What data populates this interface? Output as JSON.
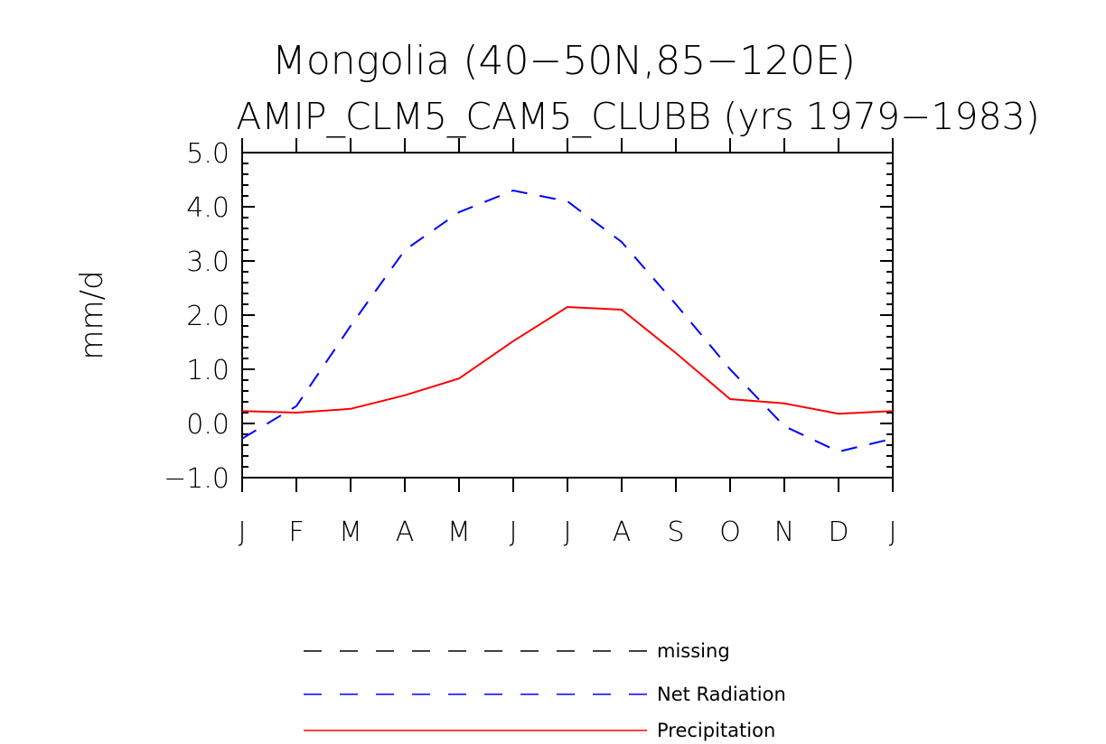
{
  "chart_data": {
    "type": "line",
    "title": "Mongolia (40−50N,85−120E)",
    "subtitle": "AMIP_CLM5_CAM5_CLUBB (yrs 1979−1983)",
    "xlabel": "",
    "ylabel": "mm/d",
    "categories": [
      "J",
      "F",
      "M",
      "A",
      "M",
      "J",
      "J",
      "A",
      "S",
      "O",
      "N",
      "D",
      "J"
    ],
    "ylim": [
      -1.0,
      5.0
    ],
    "yticks": [
      {
        "value": -1.0,
        "label": "−1.0"
      },
      {
        "value": 0.0,
        "label": "0.0"
      },
      {
        "value": 1.0,
        "label": "1.0"
      },
      {
        "value": 2.0,
        "label": "2.0"
      },
      {
        "value": 3.0,
        "label": "3.0"
      },
      {
        "value": 4.0,
        "label": "4.0"
      },
      {
        "value": 5.0,
        "label": "5.0"
      }
    ],
    "series": [
      {
        "name": "Net Radiation",
        "color": "#0000ff",
        "style": "dashed",
        "values": [
          -0.28,
          0.32,
          1.8,
          3.2,
          3.9,
          4.3,
          4.1,
          3.35,
          2.2,
          1.0,
          -0.05,
          -0.52,
          -0.28
        ]
      },
      {
        "name": "Precipitation",
        "color": "#ff0000",
        "style": "solid",
        "values": [
          0.23,
          0.2,
          0.27,
          0.52,
          0.83,
          1.52,
          2.15,
          2.1,
          1.3,
          0.45,
          0.37,
          0.18,
          0.23
        ]
      }
    ],
    "legend": {
      "position": "bottom-center",
      "entries": [
        {
          "label": "missing",
          "color": "#000000",
          "style": "dashed"
        },
        {
          "label": "Net Radiation",
          "color": "#0000ff",
          "style": "dashed"
        },
        {
          "label": "Precipitation",
          "color": "#ff0000",
          "style": "solid"
        }
      ]
    }
  }
}
